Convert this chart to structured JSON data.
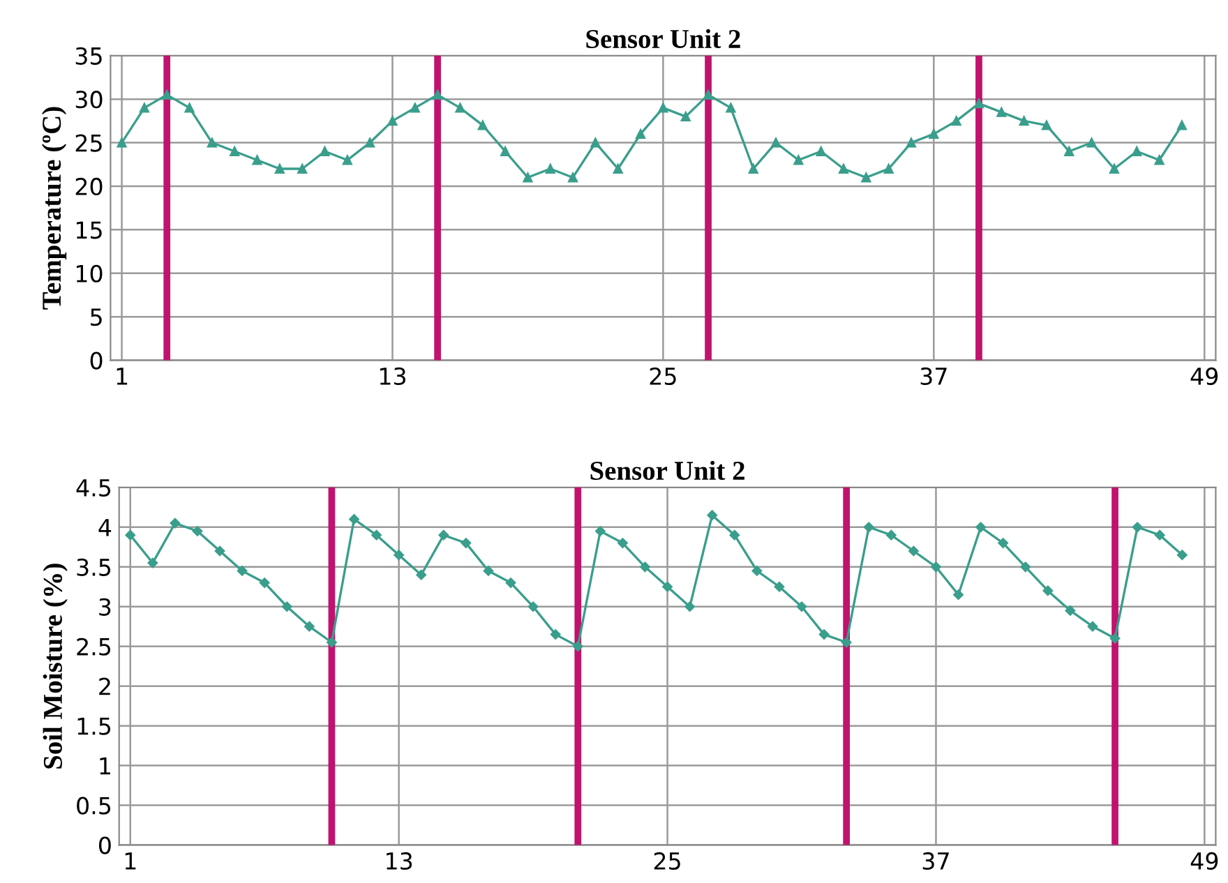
{
  "chart_data": [
    {
      "type": "line",
      "title": "Sensor Unit 2",
      "ylabel": "Temperature (ºC)",
      "x": [
        1,
        2,
        3,
        4,
        5,
        6,
        7,
        8,
        9,
        10,
        11,
        12,
        13,
        14,
        15,
        16,
        17,
        18,
        19,
        20,
        21,
        22,
        23,
        24,
        25,
        26,
        27,
        28,
        29,
        30,
        31,
        32,
        33,
        34,
        35,
        36,
        37,
        38,
        39,
        40,
        41,
        42,
        43,
        44,
        45,
        46,
        47,
        48
      ],
      "series": [
        {
          "color": "#3a9e8c",
          "values": [
            25,
            29,
            30.5,
            29,
            25,
            24,
            23,
            22,
            22,
            24,
            23,
            25,
            27.5,
            29,
            30.5,
            29,
            27,
            24,
            21,
            22,
            21,
            25,
            22,
            26,
            29,
            28,
            30.5,
            29,
            22,
            25,
            23,
            24,
            22,
            21,
            22,
            25,
            26,
            27.5,
            29.5,
            28.5,
            27.5,
            27,
            24,
            25,
            22,
            24,
            23,
            27
          ]
        }
      ],
      "xlim": [
        0.5,
        49.5
      ],
      "xticks": [
        1,
        13,
        25,
        37,
        49
      ],
      "ylim": [
        0,
        35
      ],
      "yticks": [
        0,
        5,
        10,
        15,
        20,
        25,
        30,
        35
      ],
      "grid": true,
      "marker": "triangle",
      "line_style": "solid",
      "ref_lines": [
        {
          "axis": "x",
          "value": 3,
          "color": "#c0136e"
        },
        {
          "axis": "x",
          "value": 15,
          "color": "#c0136e"
        },
        {
          "axis": "x",
          "value": 27,
          "color": "#c0136e"
        },
        {
          "axis": "x",
          "value": 39,
          "color": "#c0136e"
        }
      ]
    },
    {
      "type": "line",
      "title": "Sensor Unit 2",
      "ylabel": "Soil Moisture (%)",
      "x": [
        1,
        2,
        3,
        4,
        5,
        6,
        7,
        8,
        9,
        10,
        11,
        12,
        13,
        14,
        15,
        16,
        17,
        18,
        19,
        20,
        21,
        22,
        23,
        24,
        25,
        26,
        27,
        28,
        29,
        30,
        31,
        32,
        33,
        34,
        35,
        36,
        37,
        38,
        39,
        40,
        41,
        42,
        43,
        44,
        45,
        46,
        47,
        48
      ],
      "series": [
        {
          "color": "#3a9e8c",
          "values": [
            3.9,
            3.55,
            4.05,
            3.95,
            3.7,
            3.45,
            3.3,
            3.0,
            2.75,
            2.55,
            4.1,
            3.9,
            3.65,
            3.4,
            3.9,
            3.8,
            3.45,
            3.3,
            3.0,
            2.65,
            2.5,
            3.95,
            3.8,
            3.5,
            3.25,
            3.0,
            4.15,
            3.9,
            3.45,
            3.25,
            3.0,
            2.65,
            2.55,
            4.0,
            3.9,
            3.7,
            3.5,
            3.15,
            4.0,
            3.8,
            3.5,
            3.2,
            2.95,
            2.75,
            2.6,
            4.0,
            3.9,
            3.65
          ]
        }
      ],
      "xlim": [
        0.5,
        49.5
      ],
      "xticks": [
        1,
        13,
        25,
        37,
        49
      ],
      "ylim": [
        0,
        4.5
      ],
      "yticks": [
        0,
        0.5,
        1,
        1.5,
        2,
        2.5,
        3,
        3.5,
        4,
        4.5
      ],
      "grid": true,
      "marker": "diamond",
      "line_style": "solid",
      "ref_lines": [
        {
          "axis": "x",
          "value": 10,
          "color": "#c0136e"
        },
        {
          "axis": "x",
          "value": 21,
          "color": "#c0136e"
        },
        {
          "axis": "x",
          "value": 33,
          "color": "#c0136e"
        },
        {
          "axis": "x",
          "value": 45,
          "color": "#c0136e"
        }
      ]
    }
  ]
}
